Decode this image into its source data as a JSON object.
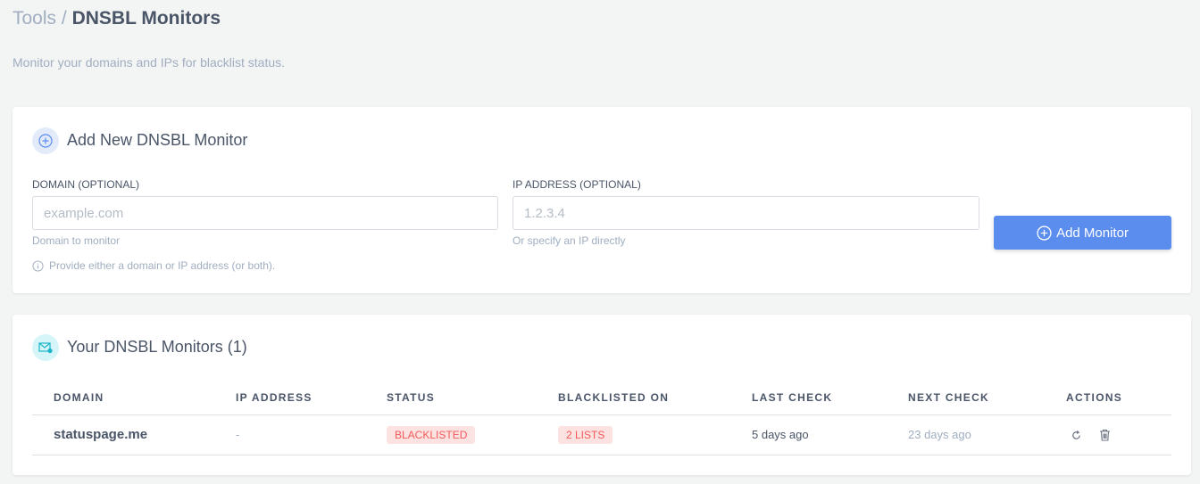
{
  "breadcrumb": {
    "parent": "Tools",
    "separator": "/",
    "current": "DNSBL Monitors"
  },
  "subtitle": "Monitor your domains and IPs for blacklist status.",
  "add_card": {
    "title": "Add New DNSBL Monitor",
    "icon": "plus-circle-icon",
    "domain": {
      "label": "DOMAIN (OPTIONAL)",
      "placeholder": "example.com",
      "value": "",
      "help": "Domain to monitor"
    },
    "ip": {
      "label": "IP ADDRESS (OPTIONAL)",
      "placeholder": "1.2.3.4",
      "value": "",
      "help": "Or specify an IP directly"
    },
    "note": "Provide either a domain or IP address (or both).",
    "button_label": "Add Monitor",
    "accent": "#5b8def"
  },
  "monitors_card": {
    "title": "Your DNSBL Monitors (1)",
    "icon": "envelope-shield-icon",
    "columns": [
      "DOMAIN",
      "IP ADDRESS",
      "STATUS",
      "BLACKLISTED ON",
      "LAST CHECK",
      "NEXT CHECK",
      "ACTIONS"
    ],
    "rows": [
      {
        "domain": "statuspage.me",
        "ip": "-",
        "status": "BLACKLISTED",
        "blacklisted_on": "2 LISTS",
        "last_check": "5 days ago",
        "next_check": "23 days ago",
        "actions": [
          "refresh-icon",
          "trash-icon"
        ]
      }
    ],
    "status_color": "#f05a5a"
  }
}
